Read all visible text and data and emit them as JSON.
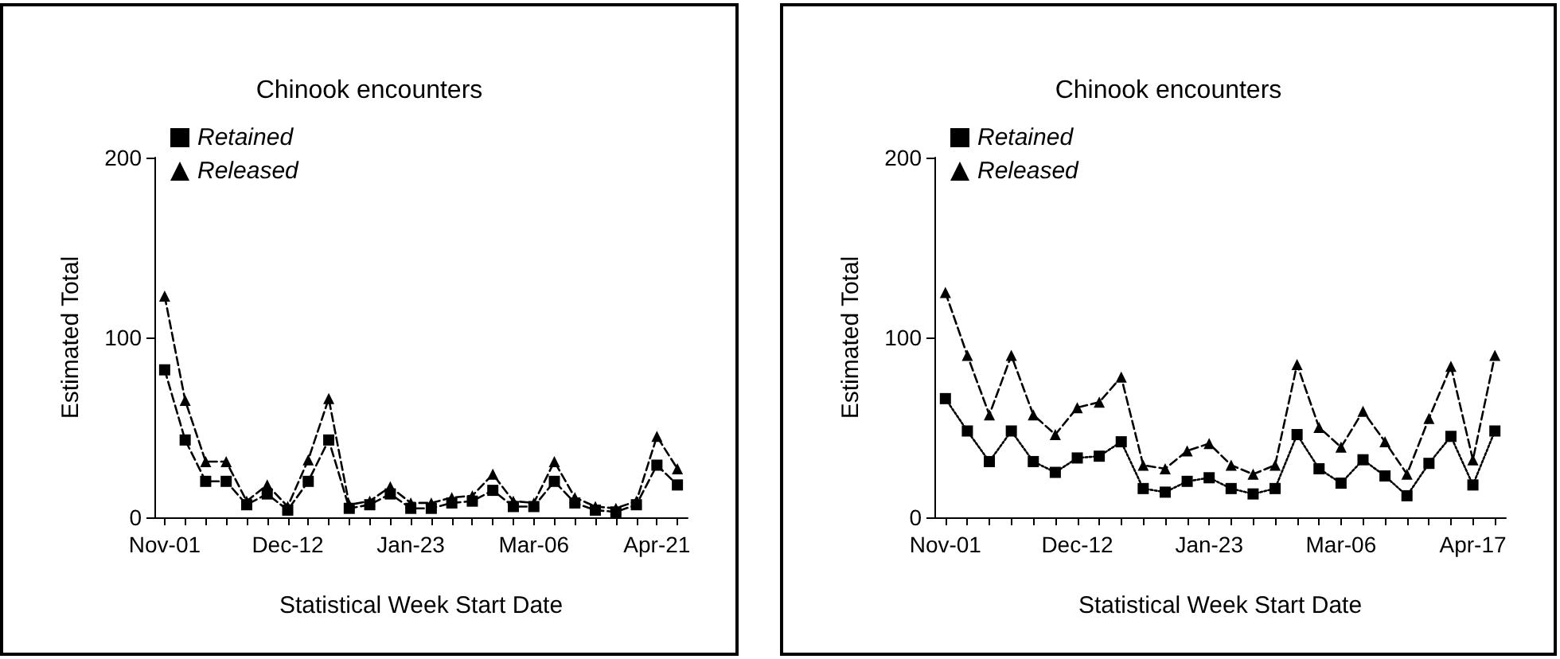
{
  "chart_data": [
    {
      "type": "line",
      "title": "Chinook encounters",
      "xlabel": "Statistical Week Start Date",
      "ylabel": "Estimated Total",
      "categories": [
        "Nov-01",
        null,
        null,
        null,
        null,
        null,
        "Dec-12",
        null,
        null,
        null,
        null,
        null,
        "Jan-23",
        null,
        null,
        null,
        null,
        null,
        "Mar-06",
        null,
        null,
        null,
        null,
        null,
        "Apr-21",
        null
      ],
      "ylim": [
        0,
        200
      ],
      "yticks": [
        0,
        100,
        200
      ],
      "legend": "top left",
      "grid": false,
      "series": [
        {
          "name": "Retained",
          "color": "#000000",
          "marker": "square",
          "line_style": "dashed",
          "values": [
            82,
            43,
            20,
            20,
            7,
            13,
            4,
            20,
            43,
            5,
            7,
            13,
            5,
            5,
            8,
            9,
            15,
            6,
            6,
            20,
            8,
            4,
            3,
            7,
            29,
            18
          ]
        },
        {
          "name": "Released",
          "color": "#000000",
          "marker": "triangle",
          "line_style": "dashed",
          "values": [
            123,
            65,
            31,
            31,
            9,
            18,
            6,
            32,
            66,
            7,
            9,
            17,
            8,
            8,
            11,
            12,
            24,
            9,
            8,
            31,
            11,
            6,
            5,
            9,
            45,
            27
          ]
        }
      ]
    },
    {
      "type": "line",
      "title": "Chinook encounters",
      "xlabel": "Statistical Week Start Date",
      "ylabel": "Estimated Total",
      "categories": [
        "Nov-01",
        null,
        null,
        null,
        null,
        null,
        "Dec-12",
        null,
        null,
        null,
        null,
        null,
        "Jan-23",
        null,
        null,
        null,
        null,
        null,
        "Mar-06",
        null,
        null,
        null,
        null,
        null,
        "Apr-17",
        null
      ],
      "ylim": [
        0,
        200
      ],
      "yticks": [
        0,
        100,
        200
      ],
      "legend": "top left",
      "grid": false,
      "series": [
        {
          "name": "Retained",
          "color": "#000000",
          "marker": "square",
          "line_style": "dotted",
          "values": [
            66,
            48,
            31,
            48,
            31,
            25,
            33,
            34,
            42,
            16,
            14,
            20,
            22,
            16,
            13,
            16,
            46,
            27,
            19,
            32,
            23,
            12,
            30,
            45,
            18,
            48
          ]
        },
        {
          "name": "Released",
          "color": "#000000",
          "marker": "triangle",
          "line_style": "dashed",
          "values": [
            125,
            90,
            57,
            90,
            57,
            46,
            61,
            64,
            78,
            29,
            27,
            37,
            41,
            29,
            24,
            29,
            85,
            50,
            39,
            59,
            42,
            24,
            55,
            84,
            32,
            90
          ]
        }
      ]
    }
  ]
}
